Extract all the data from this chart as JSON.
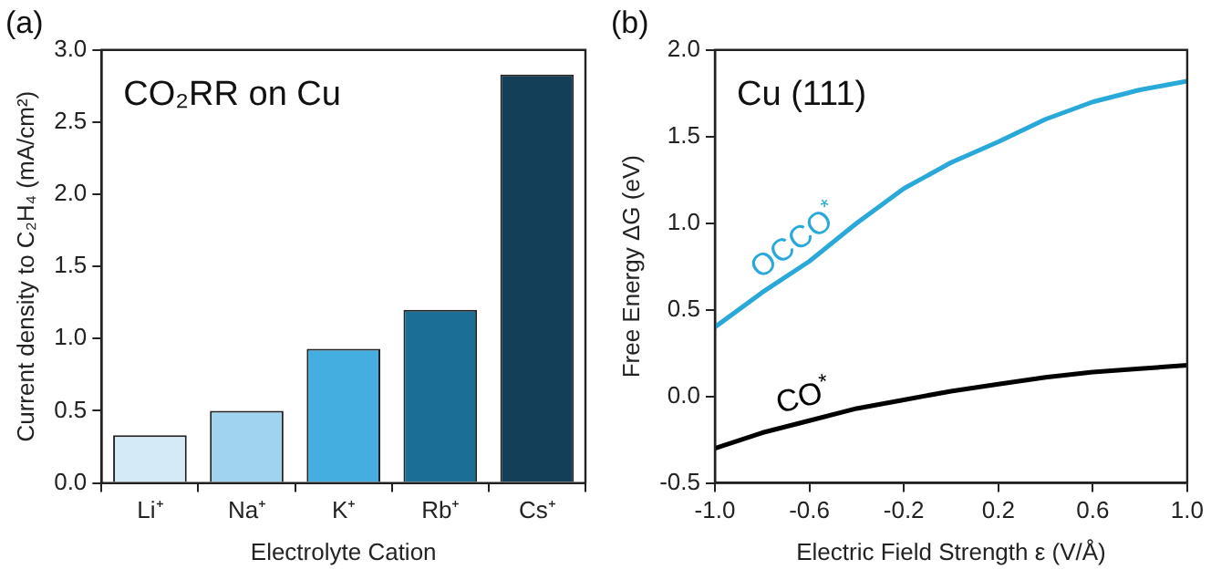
{
  "chart_data": [
    {
      "type": "bar",
      "title": "(a)",
      "annotations": [
        "CO₂RR on Cu"
      ],
      "xlabel": "Electrolyte Cation",
      "ylabel": "Current density to C₂H₄ (mA/cm²)",
      "categories": [
        "Li⁺",
        "Na⁺",
        "K⁺",
        "Rb⁺",
        "Cs⁺"
      ],
      "values": [
        0.33,
        0.5,
        0.93,
        1.2,
        2.83
      ],
      "colors": [
        "#d4eaf6",
        "#9fd3ee",
        "#45aee0",
        "#1b6e96",
        "#143f58"
      ],
      "ylim": [
        0,
        3
      ],
      "yticks": [
        {
          "value": 0,
          "label": "0.0"
        },
        {
          "value": 0.5,
          "label": "0.5"
        },
        {
          "value": 1,
          "label": "1.0"
        },
        {
          "value": 1.5,
          "label": "1.5"
        },
        {
          "value": 2,
          "label": "2.0"
        },
        {
          "value": 2.5,
          "label": "2.5"
        },
        {
          "value": 3,
          "label": "3.0"
        }
      ]
    },
    {
      "type": "line",
      "title": "(b)",
      "annotations": [
        "Cu (111)"
      ],
      "xlabel": "Electric Field Strength ε (V/Å)",
      "ylabel": "Free Energy ΔG (eV)",
      "marker": "none",
      "x": [
        -1,
        -0.8,
        -0.6,
        -0.4,
        -0.2,
        0,
        0.2,
        0.4,
        0.6,
        0.8,
        1
      ],
      "series": [
        {
          "name": "OCCO$^{*}$",
          "color": "#29a9d9",
          "values": [
            0.4,
            0.6,
            0.78,
            1.0,
            1.2,
            1.35,
            1.47,
            1.6,
            1.7,
            1.77,
            1.82
          ]
        },
        {
          "name": "CO$^{*}$",
          "color": "#000000",
          "values": [
            -0.3,
            -0.21,
            -0.14,
            -0.07,
            -0.02,
            0.03,
            0.07,
            0.11,
            0.14,
            0.16,
            0.18
          ]
        }
      ],
      "xlim": [
        -1,
        1
      ],
      "xticks": [
        {
          "value": -1,
          "label": "-1.0"
        },
        {
          "value": -0.6,
          "label": "-0.6"
        },
        {
          "value": -0.2,
          "label": "-0.2"
        },
        {
          "value": 0.2,
          "label": "0.2"
        },
        {
          "value": 0.6,
          "label": "0.6"
        },
        {
          "value": 1,
          "label": "1.0"
        }
      ],
      "ylim": [
        -0.5,
        2
      ],
      "yticks": [
        {
          "value": -0.5,
          "label": "-0.5"
        },
        {
          "value": 0,
          "label": "0.0"
        },
        {
          "value": 0.5,
          "label": "0.5"
        },
        {
          "value": 1,
          "label": "1.0"
        },
        {
          "value": 1.5,
          "label": "1.5"
        },
        {
          "value": 2,
          "label": "2.0"
        }
      ]
    }
  ]
}
